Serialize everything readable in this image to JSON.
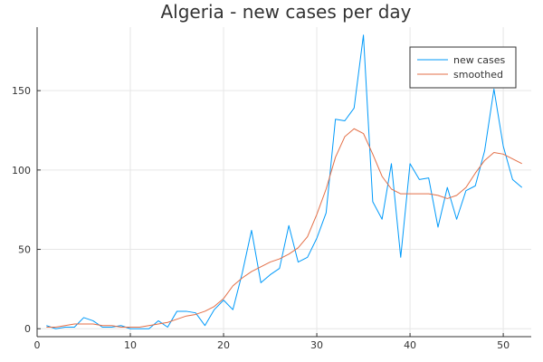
{
  "chart_data": {
    "type": "line",
    "title": "Algeria - new cases per day",
    "xlabel": "",
    "ylabel": "",
    "xlim": [
      0,
      53
    ],
    "ylim": [
      -5,
      190
    ],
    "xticks": [
      0,
      10,
      20,
      30,
      40,
      50
    ],
    "yticks": [
      0,
      50,
      100,
      150
    ],
    "grid": true,
    "legend_position": "top-right",
    "series": [
      {
        "name": "new cases",
        "color": "#009AFA",
        "x": [
          1,
          2,
          3,
          4,
          5,
          6,
          7,
          8,
          9,
          10,
          11,
          12,
          13,
          14,
          15,
          16,
          17,
          18,
          19,
          20,
          21,
          22,
          23,
          24,
          25,
          26,
          27,
          28,
          29,
          30,
          31,
          32,
          33,
          34,
          35,
          36,
          37,
          38,
          39,
          40,
          41,
          42,
          43,
          44,
          45,
          46,
          47,
          48,
          49,
          50,
          51,
          52
        ],
        "values": [
          2,
          0,
          1,
          1,
          7,
          5,
          1,
          1,
          2,
          0,
          0,
          0,
          5,
          1,
          11,
          11,
          10,
          2,
          12,
          18,
          12,
          35,
          62,
          29,
          34,
          38,
          65,
          42,
          45,
          57,
          73,
          132,
          131,
          139,
          185,
          80,
          69,
          104,
          45,
          104,
          94,
          95,
          64,
          89,
          69,
          87,
          90,
          112,
          151,
          115,
          94,
          89
        ]
      },
      {
        "name": "smoothed",
        "color": "#E36F47",
        "x": [
          1,
          2,
          3,
          4,
          5,
          6,
          7,
          8,
          9,
          10,
          11,
          12,
          13,
          14,
          15,
          16,
          17,
          18,
          19,
          20,
          21,
          22,
          23,
          24,
          25,
          26,
          27,
          28,
          29,
          30,
          31,
          32,
          33,
          34,
          35,
          36,
          37,
          38,
          39,
          40,
          41,
          42,
          43,
          44,
          45,
          46,
          47,
          48,
          49,
          50,
          51,
          52
        ],
        "values": [
          1,
          1,
          2,
          3,
          3,
          3,
          2,
          2,
          1,
          1,
          1,
          2,
          3,
          4,
          6,
          8,
          9,
          11,
          14,
          19,
          27,
          32,
          36,
          39,
          42,
          44,
          47,
          51,
          58,
          72,
          88,
          108,
          121,
          126,
          123,
          110,
          96,
          88,
          85,
          85,
          85,
          85,
          84,
          82,
          84,
          89,
          98,
          106,
          111,
          110,
          107,
          104
        ]
      }
    ]
  }
}
